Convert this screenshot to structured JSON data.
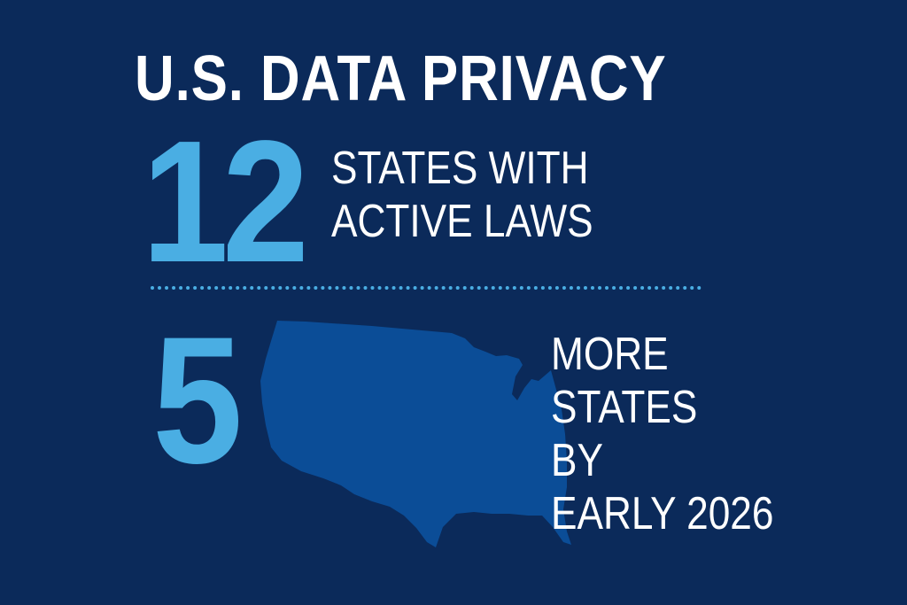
{
  "title": "U.S. DATA PRIVACY",
  "stat1": {
    "number": "12",
    "label_lines": [
      "STATES WITH",
      "ACTIVE LAWS"
    ]
  },
  "stat2": {
    "number": "5",
    "label_lines": [
      "MORE",
      "STATES",
      "BY",
      "EARLY 2026"
    ]
  },
  "colors": {
    "background": "#0b2a5a",
    "accent": "#4aaee3",
    "map": "#0b4d97",
    "text": "#ffffff"
  },
  "map": {
    "icon": "us-map-silhouette"
  }
}
